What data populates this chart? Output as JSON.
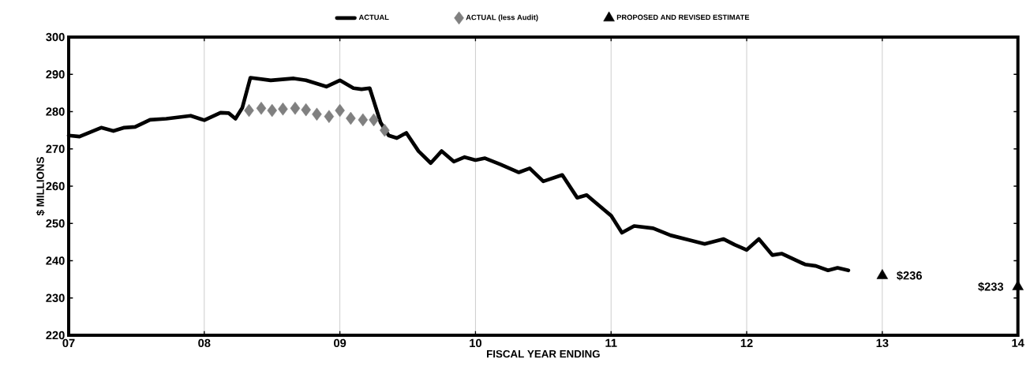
{
  "chart_data": {
    "type": "line",
    "xlabel": "FISCAL YEAR ENDING",
    "ylabel": "$ MILLIONS",
    "xlim": [
      7,
      14
    ],
    "xticks": [
      {
        "value": 7,
        "label": "07"
      },
      {
        "value": 8,
        "label": "08"
      },
      {
        "value": 9,
        "label": "09"
      },
      {
        "value": 10,
        "label": "10"
      },
      {
        "value": 11,
        "label": "11"
      },
      {
        "value": 12,
        "label": "12"
      },
      {
        "value": 13,
        "label": "13"
      },
      {
        "value": 14,
        "label": "14"
      }
    ],
    "ylim": [
      220,
      300
    ],
    "yticks": [
      220,
      230,
      240,
      250,
      260,
      270,
      280,
      290,
      300
    ],
    "grid": "x",
    "legend": "top",
    "line_style": "solid",
    "series": [
      {
        "name": "ACTUAL",
        "marker": "none",
        "color": "#000000",
        "x": [
          7.0,
          7.08,
          7.24,
          7.33,
          7.41,
          7.49,
          7.6,
          7.72,
          7.9,
          8.0,
          8.12,
          8.18,
          8.23,
          8.28,
          8.34,
          8.49,
          8.66,
          8.75,
          8.9,
          9.0,
          9.1,
          9.16,
          9.22,
          9.3,
          9.36,
          9.42,
          9.49,
          9.58,
          9.67,
          9.75,
          9.84,
          9.92,
          10.0,
          10.07,
          10.18,
          10.32,
          10.4,
          10.5,
          10.64,
          10.75,
          10.82,
          10.94,
          11.0,
          11.08,
          11.17,
          11.31,
          11.44,
          11.57,
          11.69,
          11.83,
          11.91,
          12.0,
          12.09,
          12.19,
          12.26,
          12.43,
          12.51,
          12.6,
          12.67,
          12.75
        ],
        "values": [
          273.6,
          273.3,
          275.7,
          274.8,
          275.7,
          275.9,
          277.8,
          278.1,
          278.9,
          277.7,
          279.7,
          279.6,
          278.1,
          281.0,
          289.1,
          288.4,
          288.9,
          288.4,
          286.7,
          288.4,
          286.3,
          286.0,
          286.3,
          277.1,
          273.6,
          272.9,
          274.3,
          269.4,
          266.2,
          269.4,
          266.6,
          267.8,
          267.0,
          267.5,
          265.9,
          263.7,
          264.8,
          261.3,
          263.0,
          256.9,
          257.6,
          253.9,
          252.1,
          247.5,
          249.3,
          248.7,
          246.8,
          245.6,
          244.5,
          245.8,
          244.3,
          242.9,
          245.8,
          241.5,
          241.9,
          239.0,
          238.6,
          237.4,
          238.1,
          237.4
        ]
      },
      {
        "name": "ACTUAL (less Audit)",
        "type": "scatter",
        "marker": "diamond",
        "color": "#808080",
        "x": [
          8.33,
          8.42,
          8.5,
          8.58,
          8.67,
          8.75,
          8.83,
          8.92,
          9.0,
          9.08,
          9.17,
          9.25,
          9.33
        ],
        "values": [
          280.3,
          280.9,
          280.3,
          280.7,
          280.9,
          280.5,
          279.3,
          278.7,
          280.3,
          278.2,
          277.8,
          277.8,
          275.0
        ]
      },
      {
        "name": "PROPOSED AND REVISED ESTIMATE",
        "type": "scatter",
        "marker": "triangle",
        "color": "#000000",
        "x": [
          13,
          14
        ],
        "values": [
          236,
          233
        ],
        "value_labels": [
          "$236",
          "$233"
        ]
      }
    ]
  }
}
